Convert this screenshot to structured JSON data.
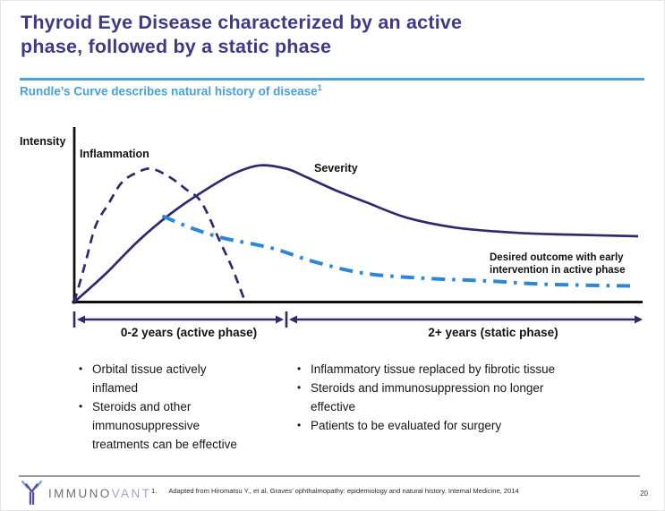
{
  "slide": {
    "title_lines": [
      "Thyroid Eye Disease characterized by an active",
      "phase, followed by a static phase"
    ],
    "subtitle": "Rundle’s Curve describes natural history of disease",
    "subtitle_superscript": "1",
    "title_color": "#3e3a85",
    "accent_blue": "#4aa0dc"
  },
  "chart_data": {
    "type": "line",
    "title": "",
    "xlabel": "",
    "ylabel": "Intensity",
    "x_unit": "years",
    "grid": false,
    "legend": "inline-labels",
    "y_axis": {
      "min": 0,
      "max": 1,
      "tick_labels": "none"
    },
    "x_axis_segments": [
      {
        "label": "0-2 years (active phase)",
        "start_year": 0,
        "end_year": 2
      },
      {
        "label": "2+ years (static phase)",
        "start_year": 2,
        "end_year": 5.5
      }
    ],
    "series": [
      {
        "name": "Inflammation",
        "style": "dashed",
        "color": "#2e2a6b",
        "points": [
          [
            0,
            0
          ],
          [
            0.1,
            0.22
          ],
          [
            0.2,
            0.45
          ],
          [
            0.32,
            0.58
          ],
          [
            0.45,
            0.71
          ],
          [
            0.6,
            0.77
          ],
          [
            0.73,
            0.79
          ],
          [
            0.9,
            0.74
          ],
          [
            1.05,
            0.67
          ],
          [
            1.2,
            0.59
          ],
          [
            1.38,
            0.35
          ],
          [
            1.49,
            0.2
          ],
          [
            1.6,
            0.02
          ]
        ]
      },
      {
        "name": "Severity",
        "style": "solid",
        "color": "#2e2a6b",
        "points": [
          [
            0,
            0
          ],
          [
            0.3,
            0.17
          ],
          [
            0.6,
            0.36
          ],
          [
            0.9,
            0.52
          ],
          [
            1.2,
            0.65
          ],
          [
            1.5,
            0.76
          ],
          [
            1.75,
            0.81
          ],
          [
            2.0,
            0.79
          ],
          [
            2.2,
            0.74
          ],
          [
            2.5,
            0.66
          ],
          [
            2.8,
            0.59
          ],
          [
            3.2,
            0.5
          ],
          [
            3.7,
            0.44
          ],
          [
            4.3,
            0.41
          ],
          [
            4.8,
            0.4
          ],
          [
            5.5,
            0.39
          ]
        ]
      },
      {
        "name": "Desired outcome with early intervention in active phase",
        "label_lines": [
          "Desired outcome with early",
          "intervention in active phase"
        ],
        "style": "dash-dot",
        "color": "#2d87d6",
        "points": [
          [
            0.83,
            0.51
          ],
          [
            1.1,
            0.44
          ],
          [
            1.4,
            0.38
          ],
          [
            1.86,
            0.32
          ],
          [
            2.27,
            0.24
          ],
          [
            2.78,
            0.17
          ],
          [
            3.4,
            0.14
          ],
          [
            4.0,
            0.125
          ],
          [
            4.6,
            0.105
          ],
          [
            5.45,
            0.095
          ]
        ]
      }
    ]
  },
  "bullets_left": {
    "items": [
      {
        "lines": [
          "Orbital tissue actively",
          "inflamed"
        ]
      },
      {
        "lines": [
          "Steroids and other",
          "immunosuppressive",
          "treatments can be effective"
        ]
      }
    ]
  },
  "bullets_right": {
    "items": [
      {
        "lines": [
          "Inflammatory tissue replaced by fibrotic tissue"
        ]
      },
      {
        "lines": [
          "Steroids and immunosuppression no longer",
          "effective"
        ]
      },
      {
        "lines": [
          "Patients to be evaluated for surgery"
        ]
      }
    ]
  },
  "footer": {
    "logo_text_primary": "IMMUNO",
    "logo_text_secondary": "VANT",
    "footnote_number": "1.",
    "footnote_text": "Adapted from Hiromatsu Y., et al. Graves’ ophthalmopathy: epidemiology and natural history. Internal Medicine, 2014",
    "page_number": "20"
  }
}
